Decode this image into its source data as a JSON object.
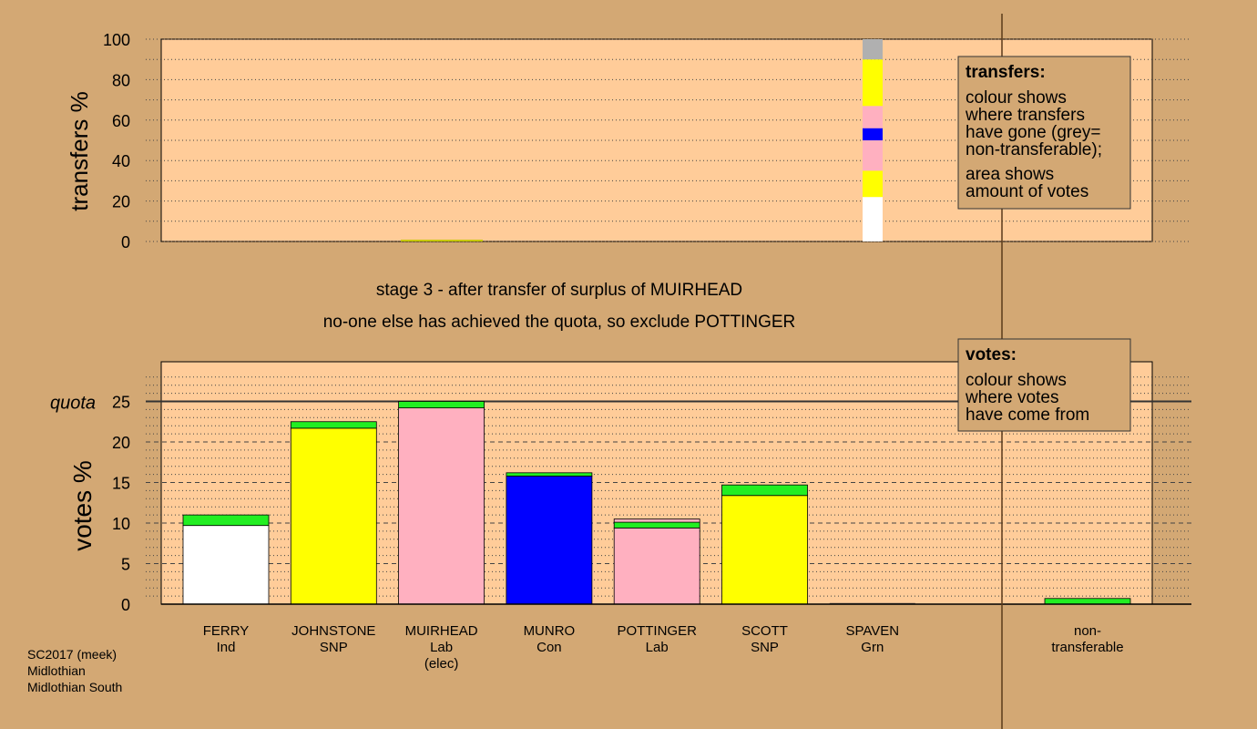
{
  "chart_data": [
    {
      "type": "bar",
      "name": "transfers",
      "ylabel": "transfers %",
      "ylim": [
        0,
        100
      ],
      "yticks": [
        "0",
        "20",
        "40",
        "60",
        "80",
        "100"
      ],
      "transfer_bar": {
        "candidate": "SPAVEN",
        "segments": [
          {
            "from": 0,
            "to": 22,
            "color": "#ffffff"
          },
          {
            "from": 22,
            "to": 35,
            "color": "#ffff00"
          },
          {
            "from": 35,
            "to": 50,
            "color": "#ffb0c0"
          },
          {
            "from": 50,
            "to": 56,
            "color": "#0000ff"
          },
          {
            "from": 56,
            "to": 67,
            "color": "#ffb0c0"
          },
          {
            "from": 67,
            "to": 90,
            "color": "#ffff00"
          },
          {
            "from": 90,
            "to": 100,
            "color": "#b0b0b0"
          }
        ]
      },
      "legend": {
        "title": "transfers:",
        "lines": [
          "colour shows",
          "where transfers",
          "have gone (grey=",
          "non-transferable);",
          "area shows",
          "amount of votes"
        ]
      }
    },
    {
      "type": "bar",
      "name": "votes",
      "ylabel": "votes %",
      "ylim": [
        0,
        29
      ],
      "yticks": [
        "0",
        "5",
        "10",
        "15",
        "20",
        "25"
      ],
      "quota": 25,
      "quota_label": "quota",
      "categories": [
        {
          "name": "FERRY",
          "party": "Ind",
          "extra": "",
          "base": 9.7,
          "base_color": "#ffffff",
          "stack": [
            {
              "value": 1.3,
              "color": "#22ee22"
            }
          ]
        },
        {
          "name": "JOHNSTONE",
          "party": "SNP",
          "extra": "",
          "base": 21.7,
          "base_color": "#ffff00",
          "stack": [
            {
              "value": 0.8,
              "color": "#22ee22"
            }
          ]
        },
        {
          "name": "MUIRHEAD",
          "party": "Lab",
          "extra": "(elec)",
          "base": 24.2,
          "base_color": "#ffb0c0",
          "stack": [
            {
              "value": 0.8,
              "color": "#22ee22"
            }
          ]
        },
        {
          "name": "MUNRO",
          "party": "Con",
          "extra": "",
          "base": 15.8,
          "base_color": "#0000ff",
          "stack": [
            {
              "value": 0.4,
              "color": "#22ee22"
            }
          ]
        },
        {
          "name": "POTTINGER",
          "party": "Lab",
          "extra": "",
          "base": 9.4,
          "base_color": "#ffb0c0",
          "stack": [
            {
              "value": 0.7,
              "color": "#22ee22"
            },
            {
              "value": 0.4,
              "color": "#ffb0c0"
            }
          ]
        },
        {
          "name": "SCOTT",
          "party": "SNP",
          "extra": "",
          "base": 13.4,
          "base_color": "#ffff00",
          "stack": [
            {
              "value": 1.3,
              "color": "#22ee22"
            }
          ]
        },
        {
          "name": "SPAVEN",
          "party": "Grn",
          "extra": "",
          "base": 0,
          "base_color": "#22ee22",
          "stack": []
        }
      ],
      "non_transferable": {
        "label_line1": "non-",
        "label_line2": "transferable",
        "value": 0.7,
        "color": "#22ee22"
      },
      "legend": {
        "title": "votes:",
        "lines": [
          "colour shows",
          "where votes",
          "have come from"
        ]
      }
    }
  ],
  "messages": {
    "line1": "stage 3 - after transfer of surplus of MUIRHEAD",
    "line2": "no-one else has achieved the quota, so exclude POTTINGER"
  },
  "footer": [
    "SC2017 (meek)",
    "Midlothian",
    "Midlothian South"
  ],
  "colors": {
    "background": "#d3a874",
    "plot_area": "#ffcc99",
    "transferred_in": "#22ee22",
    "axis": "#000000",
    "separator": "#5a3a1a"
  }
}
